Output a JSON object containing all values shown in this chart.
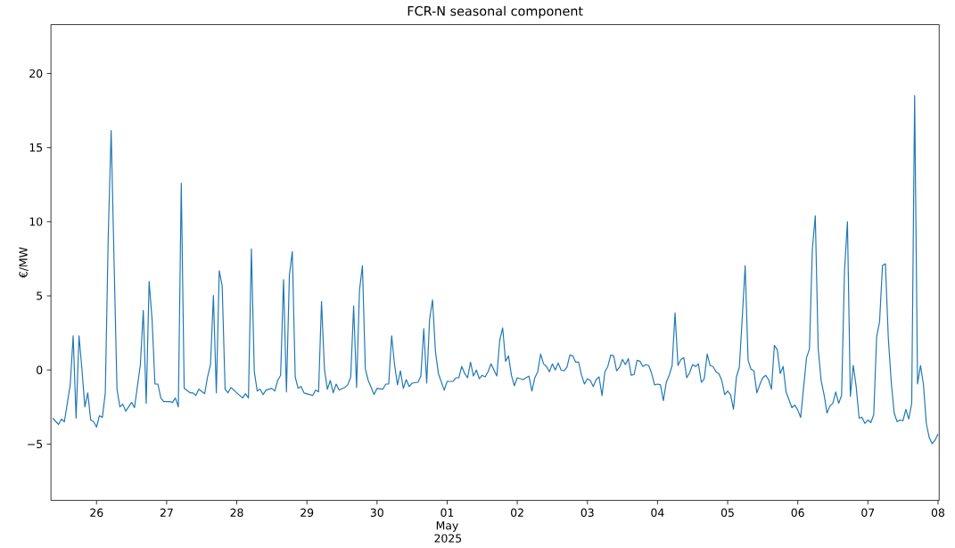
{
  "chart_data": {
    "type": "line",
    "title": "FCR-N seasonal component",
    "ylabel": "€/MW",
    "xlim": [
      "2025-04-25T08:24",
      "2025-05-08T00:24"
    ],
    "ylim": [
      -8.8,
      23.3
    ],
    "xticks": [
      {
        "value": "2025-04-26",
        "label": "26"
      },
      {
        "value": "2025-04-27",
        "label": "27"
      },
      {
        "value": "2025-04-28",
        "label": "28"
      },
      {
        "value": "2025-04-29",
        "label": "29"
      },
      {
        "value": "2025-04-30",
        "label": "30"
      },
      {
        "value": "2025-05-01",
        "label": "01 May 2025"
      },
      {
        "value": "2025-05-02",
        "label": "02"
      },
      {
        "value": "2025-05-03",
        "label": "03"
      },
      {
        "value": "2025-05-04",
        "label": "04"
      },
      {
        "value": "2025-05-05",
        "label": "05"
      },
      {
        "value": "2025-05-06",
        "label": "06"
      },
      {
        "value": "2025-05-07",
        "label": "07"
      },
      {
        "value": "2025-05-08",
        "label": "08"
      }
    ],
    "yticks": [
      {
        "value": -5,
        "label": "−5"
      },
      0,
      5,
      10,
      15,
      20
    ],
    "series": [
      {
        "color": "#1f77b4",
        "x": [
          "2025-04-25T09:00",
          "2025-04-25T11:00",
          "2025-04-25T12:00",
          "2025-04-25T13:00",
          "2025-04-25T15:00",
          "2025-04-25T16:00",
          "2025-04-25T17:00",
          "2025-04-25T18:00",
          "2025-04-25T19:00",
          "2025-04-25T20:00",
          "2025-04-25T21:00",
          "2025-04-25T22:00",
          "2025-04-25T23:00",
          "2025-04-26T00:00",
          "2025-04-26T01:00",
          "2025-04-26T02:00",
          "2025-04-26T03:00",
          "2025-04-26T04:00",
          "2025-04-26T05:00",
          "2025-04-26T06:00",
          "2025-04-26T07:00",
          "2025-04-26T08:00",
          "2025-04-26T09:00",
          "2025-04-26T10:00",
          "2025-04-26T12:00",
          "2025-04-26T13:00",
          "2025-04-26T15:00",
          "2025-04-26T16:00",
          "2025-04-26T17:00",
          "2025-04-26T18:00",
          "2025-04-26T19:00",
          "2025-04-26T20:00",
          "2025-04-26T21:00",
          "2025-04-26T22:00",
          "2025-04-26T23:00",
          "2025-04-27T01:00",
          "2025-04-27T02:00",
          "2025-04-27T03:00",
          "2025-04-27T04:00",
          "2025-04-27T05:00",
          "2025-04-27T06:00",
          "2025-04-27T08:00",
          "2025-04-27T09:00",
          "2025-04-27T10:00",
          "2025-04-27T11:00",
          "2025-04-27T13:00",
          "2025-04-27T14:00",
          "2025-04-27T15:00",
          "2025-04-27T16:00",
          "2025-04-27T17:00",
          "2025-04-27T18:00",
          "2025-04-27T19:00",
          "2025-04-27T20:00",
          "2025-04-27T21:00",
          "2025-04-27T22:00",
          "2025-04-28T00:00",
          "2025-04-28T02:00",
          "2025-04-28T03:00",
          "2025-04-28T04:00",
          "2025-04-28T05:00",
          "2025-04-28T06:00",
          "2025-04-28T07:00",
          "2025-04-28T08:00",
          "2025-04-28T09:00",
          "2025-04-28T10:00",
          "2025-04-28T12:00",
          "2025-04-28T13:00",
          "2025-04-28T14:00",
          "2025-04-28T15:00",
          "2025-04-28T16:00",
          "2025-04-28T17:00",
          "2025-04-28T18:00",
          "2025-04-28T19:00",
          "2025-04-28T20:00",
          "2025-04-28T21:00",
          "2025-04-28T22:00",
          "2025-04-28T23:00",
          "2025-04-29T01:00",
          "2025-04-29T02:00",
          "2025-04-29T03:00",
          "2025-04-29T04:00",
          "2025-04-29T05:00",
          "2025-04-29T06:00",
          "2025-04-29T07:00",
          "2025-04-29T08:00",
          "2025-04-29T09:00",
          "2025-04-29T10:00",
          "2025-04-29T11:00",
          "2025-04-29T13:00",
          "2025-04-29T14:00",
          "2025-04-29T15:00",
          "2025-04-29T16:00",
          "2025-04-29T17:00",
          "2025-04-29T18:00",
          "2025-04-29T19:00",
          "2025-04-29T20:00",
          "2025-04-29T21:00",
          "2025-04-29T23:00",
          "2025-04-30T00:00",
          "2025-04-30T02:00",
          "2025-04-30T03:00",
          "2025-04-30T04:00",
          "2025-04-30T05:00",
          "2025-04-30T06:00",
          "2025-04-30T07:00",
          "2025-04-30T08:00",
          "2025-04-30T09:00",
          "2025-04-30T10:00",
          "2025-04-30T11:00",
          "2025-04-30T12:00",
          "2025-04-30T14:00",
          "2025-04-30T15:00",
          "2025-04-30T16:00",
          "2025-04-30T17:00",
          "2025-04-30T18:00",
          "2025-04-30T19:00",
          "2025-04-30T20:00",
          "2025-04-30T21:00",
          "2025-04-30T23:00",
          "2025-05-01T00:00",
          "2025-05-01T02:00",
          "2025-05-01T03:00",
          "2025-05-01T04:00",
          "2025-05-01T05:00",
          "2025-05-01T06:00",
          "2025-05-01T07:00",
          "2025-05-01T08:00",
          "2025-05-01T09:00",
          "2025-05-01T10:00",
          "2025-05-01T11:00",
          "2025-05-01T12:00",
          "2025-05-01T13:00",
          "2025-05-01T14:00",
          "2025-05-01T15:00",
          "2025-05-01T17:00",
          "2025-05-01T18:00",
          "2025-05-01T19:00",
          "2025-05-01T20:00",
          "2025-05-01T21:00",
          "2025-05-01T22:00",
          "2025-05-01T23:00",
          "2025-05-02T00:00",
          "2025-05-02T02:00",
          "2025-05-02T04:00",
          "2025-05-02T05:00",
          "2025-05-02T06:00",
          "2025-05-02T07:00",
          "2025-05-02T08:00",
          "2025-05-02T09:00",
          "2025-05-02T10:00",
          "2025-05-02T11:00",
          "2025-05-02T12:00",
          "2025-05-02T13:00",
          "2025-05-02T14:00",
          "2025-05-02T15:00",
          "2025-05-02T16:00",
          "2025-05-02T17:00",
          "2025-05-02T18:00",
          "2025-05-02T19:00",
          "2025-05-02T20:00",
          "2025-05-02T21:00",
          "2025-05-02T22:00",
          "2025-05-02T23:00",
          "2025-05-03T00:00",
          "2025-05-03T01:00",
          "2025-05-03T02:00",
          "2025-05-03T03:00",
          "2025-05-03T04:00",
          "2025-05-03T05:00",
          "2025-05-03T06:00",
          "2025-05-03T07:00",
          "2025-05-03T08:00",
          "2025-05-03T09:00",
          "2025-05-03T10:00",
          "2025-05-03T11:00",
          "2025-05-03T12:00",
          "2025-05-03T13:00",
          "2025-05-03T14:00",
          "2025-05-03T15:00",
          "2025-05-03T16:00",
          "2025-05-03T17:00",
          "2025-05-03T18:00",
          "2025-05-03T19:00",
          "2025-05-03T20:00",
          "2025-05-03T21:00",
          "2025-05-03T22:00",
          "2025-05-03T23:00",
          "2025-05-04T00:00",
          "2025-05-04T01:00",
          "2025-05-04T02:00",
          "2025-05-04T03:00",
          "2025-05-04T04:00",
          "2025-05-04T05:00",
          "2025-05-04T06:00",
          "2025-05-04T07:00",
          "2025-05-04T08:00",
          "2025-05-04T09:00",
          "2025-05-04T10:00",
          "2025-05-04T11:00",
          "2025-05-04T12:00",
          "2025-05-04T13:00",
          "2025-05-04T14:00",
          "2025-05-04T15:00",
          "2025-05-04T16:00",
          "2025-05-04T17:00",
          "2025-05-04T18:00",
          "2025-05-04T19:00",
          "2025-05-04T20:00",
          "2025-05-04T21:00",
          "2025-05-04T22:00",
          "2025-05-04T23:00",
          "2025-05-05T00:00",
          "2025-05-05T01:00",
          "2025-05-05T02:00",
          "2025-05-05T03:00",
          "2025-05-05T04:00",
          "2025-05-05T05:00",
          "2025-05-05T06:00",
          "2025-05-05T07:00",
          "2025-05-05T08:00",
          "2025-05-05T09:00",
          "2025-05-05T10:00",
          "2025-05-05T11:00",
          "2025-05-05T12:00",
          "2025-05-05T13:00",
          "2025-05-05T14:00",
          "2025-05-05T15:00",
          "2025-05-05T16:00",
          "2025-05-05T17:00",
          "2025-05-05T18:00",
          "2025-05-05T19:00",
          "2025-05-05T20:00",
          "2025-05-05T22:00",
          "2025-05-05T23:00",
          "2025-05-06T00:00",
          "2025-05-06T01:00",
          "2025-05-06T03:00",
          "2025-05-06T04:00",
          "2025-05-06T05:00",
          "2025-05-06T06:00",
          "2025-05-06T07:00",
          "2025-05-06T08:00",
          "2025-05-06T09:00",
          "2025-05-06T10:00",
          "2025-05-06T11:00",
          "2025-05-06T12:00",
          "2025-05-06T13:00",
          "2025-05-06T14:00",
          "2025-05-06T15:00",
          "2025-05-06T16:00",
          "2025-05-06T17:00",
          "2025-05-06T18:00",
          "2025-05-06T19:00",
          "2025-05-06T20:00",
          "2025-05-06T21:00",
          "2025-05-06T22:00",
          "2025-05-06T23:00",
          "2025-05-07T00:00",
          "2025-05-07T01:00",
          "2025-05-07T02:00",
          "2025-05-07T03:00",
          "2025-05-07T04:00",
          "2025-05-07T05:00",
          "2025-05-07T06:00",
          "2025-05-07T07:00",
          "2025-05-07T08:00",
          "2025-05-07T09:00",
          "2025-05-07T10:00",
          "2025-05-07T11:00",
          "2025-05-07T12:00",
          "2025-05-07T13:00",
          "2025-05-07T14:00",
          "2025-05-07T15:00",
          "2025-05-07T16:00",
          "2025-05-07T17:00",
          "2025-05-07T18:00",
          "2025-05-07T19:00",
          "2025-05-07T20:00",
          "2025-05-07T21:00",
          "2025-05-07T22:00",
          "2025-05-07T23:00",
          "2025-05-08T00:00"
        ],
        "values": [
          -3.25,
          -3.67,
          -3.31,
          -3.49,
          -1.0,
          2.31,
          -3.25,
          2.31,
          0.06,
          -2.49,
          -1.54,
          -3.37,
          -3.49,
          -3.85,
          -3.08,
          -3.2,
          -1.54,
          9.0,
          16.15,
          7.34,
          -1.3,
          -2.49,
          -2.31,
          -2.78,
          -2.19,
          -2.54,
          0.36,
          4.02,
          -2.25,
          5.98,
          3.43,
          -0.95,
          -0.95,
          -1.89,
          -2.13,
          -2.13,
          -2.19,
          -1.89,
          -2.49,
          12.6,
          -1.24,
          -1.54,
          -1.54,
          -1.72,
          -1.3,
          -1.6,
          -0.47,
          0.36,
          5.03,
          -1.54,
          6.69,
          5.68,
          -1.3,
          -1.54,
          -1.18,
          -1.54,
          -1.89,
          -1.6,
          -1.89,
          8.17,
          -0.12,
          -1.42,
          -1.3,
          -1.66,
          -1.36,
          -1.24,
          -1.42,
          -0.71,
          -0.36,
          6.09,
          -1.48,
          6.39,
          7.99,
          -0.47,
          -1.24,
          -1.12,
          -1.54,
          -1.66,
          -1.72,
          -1.36,
          -1.48,
          4.62,
          0.06,
          -1.3,
          -0.71,
          -1.54,
          -0.95,
          -1.36,
          -1.18,
          -1.0,
          -0.47,
          4.32,
          -1.18,
          5.38,
          7.04,
          0.06,
          -0.71,
          -1.66,
          -1.24,
          -1.3,
          -0.95,
          -0.95,
          2.31,
          0.36,
          -1.0,
          -0.06,
          -1.24,
          -0.65,
          -1.12,
          -0.89,
          -0.83,
          -0.41,
          2.78,
          -0.89,
          3.43,
          4.73,
          1.24,
          -0.24,
          -1.36,
          -0.77,
          -0.77,
          -0.53,
          -0.53,
          0.24,
          -0.24,
          -0.53,
          0.53,
          -0.41,
          0.0,
          -0.59,
          -0.36,
          -0.47,
          -0.12,
          0.41,
          -0.41,
          2.01,
          2.84,
          0.59,
          0.95,
          -0.36,
          -1.07,
          -0.53,
          -0.65,
          -0.41,
          -1.42,
          -0.53,
          -0.12,
          1.07,
          0.41,
          0.24,
          -0.12,
          0.41,
          0.0,
          0.47,
          0.0,
          -0.06,
          0.18,
          1.01,
          0.95,
          0.53,
          0.53,
          -0.36,
          -0.95,
          -0.59,
          -0.71,
          -1.12,
          -0.65,
          -0.47,
          -1.72,
          -0.12,
          0.24,
          1.01,
          0.95,
          -0.06,
          0.18,
          0.71,
          0.36,
          0.77,
          -0.36,
          -0.3,
          0.65,
          0.59,
          0.24,
          0.36,
          0.3,
          -0.24,
          -1.0,
          -0.95,
          -1.0,
          -2.07,
          -0.83,
          -0.36,
          0.3,
          3.85,
          0.3,
          0.71,
          0.83,
          -0.53,
          -0.18,
          0.36,
          0.24,
          0.41,
          -0.83,
          -0.59,
          1.07,
          0.3,
          0.24,
          -0.12,
          -0.24,
          -0.71,
          -1.66,
          -1.42,
          -1.66,
          -2.66,
          -0.47,
          0.18,
          3.5,
          7.04,
          0.65,
          0.06,
          -0.06,
          -1.54,
          -1.0,
          -0.53,
          -0.36,
          -0.65,
          -1.3,
          1.66,
          1.36,
          -0.24,
          0.24,
          -1.48,
          -2.54,
          -2.37,
          -2.7,
          -3.2,
          0.83,
          1.42,
          8.17,
          10.41,
          1.42,
          -0.71,
          -1.66,
          -2.9,
          -2.43,
          -2.25,
          -1.48,
          -2.25,
          -1.72,
          6.69,
          10.0,
          -1.78,
          0.3,
          -1.12,
          -3.25,
          -3.2,
          -3.61,
          -3.37,
          -3.55,
          -3.02,
          2.25,
          3.25,
          7.04,
          7.16,
          2.13,
          -0.83,
          -2.9,
          -3.49,
          -3.37,
          -3.43,
          -2.66,
          -3.31,
          -2.25,
          18.52,
          -0.95,
          0.3,
          -0.95,
          -3.61,
          -4.56,
          -4.97,
          -4.73,
          -4.32
        ]
      }
    ]
  }
}
